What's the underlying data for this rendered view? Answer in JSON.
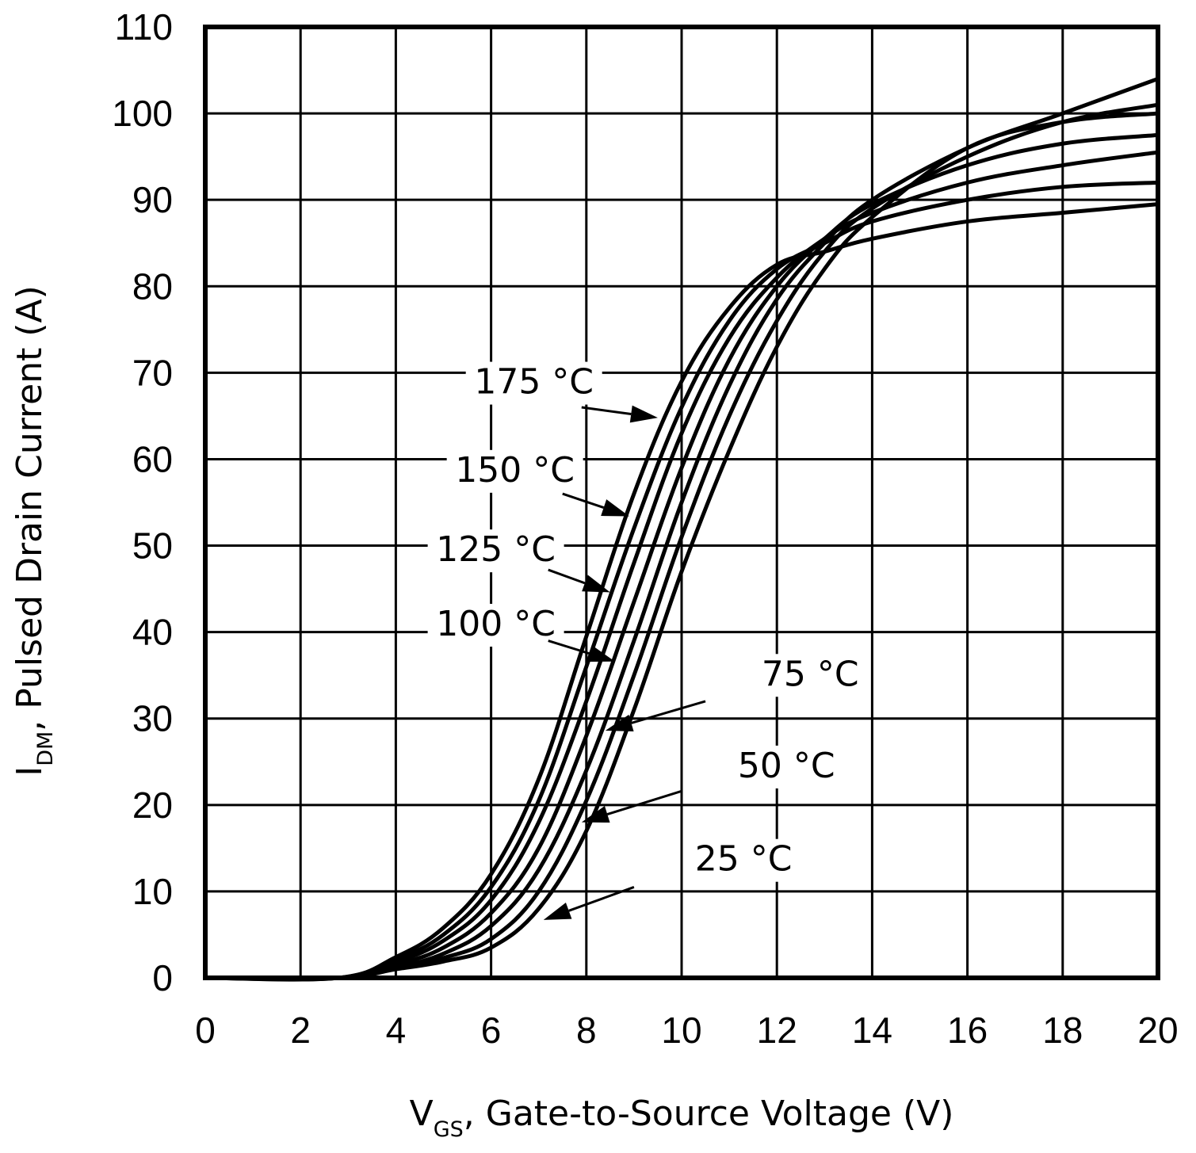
{
  "chart_data": {
    "type": "line",
    "title": "",
    "xlabel": {
      "main": "V",
      "sub": "GS",
      "rest": ", Gate-to-Source Voltage (V)"
    },
    "ylabel": {
      "main": "I",
      "sub": "DM",
      "rest": ", Pulsed Drain Current (A)"
    },
    "xlim": [
      0,
      20
    ],
    "ylim": [
      0,
      110
    ],
    "x_ticks": [
      0,
      2,
      4,
      6,
      8,
      10,
      12,
      14,
      16,
      18,
      20
    ],
    "y_ticks": [
      0,
      10,
      20,
      30,
      40,
      50,
      60,
      70,
      80,
      90,
      100,
      110
    ],
    "x_tick_labels": [
      "0",
      "2",
      "4",
      "6",
      "8",
      "10",
      "12",
      "14",
      "16",
      "18",
      "20"
    ],
    "y_tick_labels": [
      "0",
      "10",
      "20",
      "30",
      "40",
      "50",
      "60",
      "70",
      "80",
      "90",
      "100",
      "110"
    ],
    "grid": true,
    "x": [
      2.8,
      4,
      5,
      6,
      7,
      8,
      9,
      10,
      11,
      12,
      13,
      14,
      16,
      18,
      20
    ],
    "series": [
      {
        "name": "25 °C",
        "values": [
          0,
          1.0,
          1.9,
          3.5,
          8.0,
          17.0,
          31.0,
          47.0,
          61.0,
          73.0,
          82.0,
          88.0,
          96.0,
          99.0,
          100.0
        ]
      },
      {
        "name": "50 °C",
        "values": [
          0,
          1.1,
          2.3,
          4.5,
          10.0,
          20.5,
          35.0,
          51.0,
          65.0,
          76.0,
          84.0,
          89.0,
          95.0,
          99.0,
          101.0
        ]
      },
      {
        "name": "75 °C",
        "values": [
          0,
          1.2,
          2.8,
          6.0,
          12.5,
          24.0,
          39.0,
          55.0,
          68.5,
          78.5,
          85.0,
          90.0,
          96.0,
          100.0,
          104.0
        ]
      },
      {
        "name": "100 °C",
        "values": [
          0,
          1.5,
          3.5,
          7.5,
          15.0,
          28.0,
          43.5,
          59.0,
          71.5,
          80.0,
          85.5,
          89.5,
          94.0,
          96.5,
          97.5
        ]
      },
      {
        "name": "125 °C",
        "values": [
          0,
          1.8,
          4.3,
          9.0,
          18.0,
          32.0,
          48.0,
          63.0,
          74.0,
          81.0,
          85.5,
          88.5,
          92.0,
          94.0,
          95.5
        ]
      },
      {
        "name": "150 °C",
        "values": [
          0,
          2.1,
          5.0,
          10.5,
          20.5,
          36.0,
          52.0,
          66.0,
          76.0,
          82.0,
          85.0,
          87.5,
          90.0,
          91.5,
          92.0
        ]
      },
      {
        "name": "175 °C",
        "values": [
          0,
          2.4,
          5.8,
          12.0,
          23.0,
          39.5,
          56.0,
          69.0,
          77.5,
          82.5,
          84.0,
          85.5,
          87.5,
          88.5,
          89.5
        ]
      }
    ],
    "annotations": [
      {
        "label": "175 °C",
        "series": "175 °C",
        "text_at": [
          6.9,
          67.6
        ],
        "arrow_from": [
          7.9,
          66.0
        ],
        "arrow_to": [
          9.5,
          64.8
        ]
      },
      {
        "label": "150 °C",
        "series": "150 °C",
        "text_at": [
          6.5,
          57.4
        ],
        "arrow_from": [
          7.5,
          56.0
        ],
        "arrow_to": [
          8.9,
          53.4
        ]
      },
      {
        "label": "125 °C",
        "series": "125 °C",
        "text_at": [
          6.1,
          48.2
        ],
        "arrow_from": [
          7.2,
          47.2
        ],
        "arrow_to": [
          8.5,
          44.6
        ]
      },
      {
        "label": "100 °C",
        "series": "100 °C",
        "text_at": [
          6.1,
          39.6
        ],
        "arrow_from": [
          7.2,
          39.0
        ],
        "arrow_to": [
          8.6,
          36.6
        ]
      },
      {
        "label": "75 °C",
        "series": "75 °C",
        "text_at": [
          12.7,
          33.8
        ],
        "arrow_from": [
          10.5,
          32.0
        ],
        "arrow_to": [
          8.4,
          28.6
        ]
      },
      {
        "label": "50 °C",
        "series": "50 °C",
        "text_at": [
          12.2,
          23.2
        ],
        "arrow_from": [
          10.0,
          21.6
        ],
        "arrow_to": [
          7.9,
          18.0
        ]
      },
      {
        "label": "25 °C",
        "series": "25 °C",
        "text_at": [
          11.3,
          12.4
        ],
        "arrow_from": [
          9.0,
          10.5
        ],
        "arrow_to": [
          7.1,
          6.7
        ]
      }
    ]
  }
}
